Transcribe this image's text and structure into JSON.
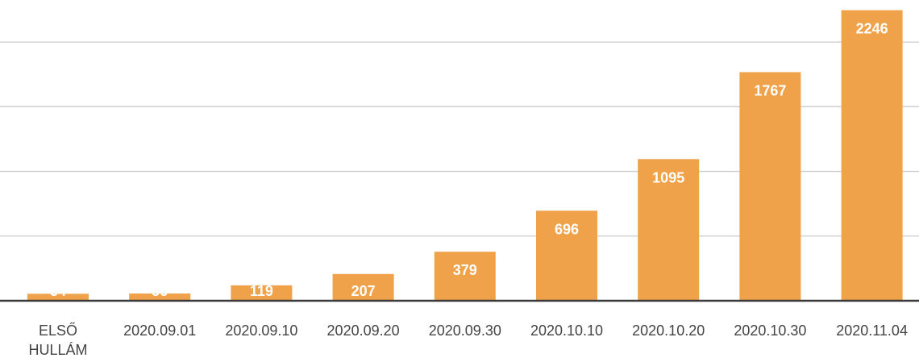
{
  "chart_data": {
    "type": "bar",
    "title": "",
    "xlabel": "",
    "ylabel": "",
    "categories": [
      "ELSŐ HULLÁM",
      "2020.09.01",
      "2020.09.10",
      "2020.09.20",
      "2020.09.30",
      "2020.10.10",
      "2020.10.20",
      "2020.10.30",
      "2020.11.04"
    ],
    "category_lines": [
      [
        "ELSŐ",
        "HULLÁM"
      ],
      [
        "2020.09.01"
      ],
      [
        "2020.09.10"
      ],
      [
        "2020.09.20"
      ],
      [
        "2020.09.30"
      ],
      [
        "2020.10.10"
      ],
      [
        "2020.10.20"
      ],
      [
        "2020.10.30"
      ],
      [
        "2020.11.04"
      ]
    ],
    "values": [
      54,
      56,
      119,
      207,
      379,
      696,
      1095,
      1767,
      2246
    ],
    "value_labels": [
      "54",
      "56",
      "119",
      "207",
      "379",
      "696",
      "1095",
      "1767",
      "2246"
    ],
    "ylim": [
      0,
      2250
    ],
    "grid": true,
    "grid_step": 500,
    "legend": "none",
    "colors": {
      "bar": "#F0A24A",
      "bar_label": "#FFFFFF",
      "axis": "#3A3A3A",
      "grid": "#CCCCCC",
      "tick_label": "#444444"
    }
  }
}
